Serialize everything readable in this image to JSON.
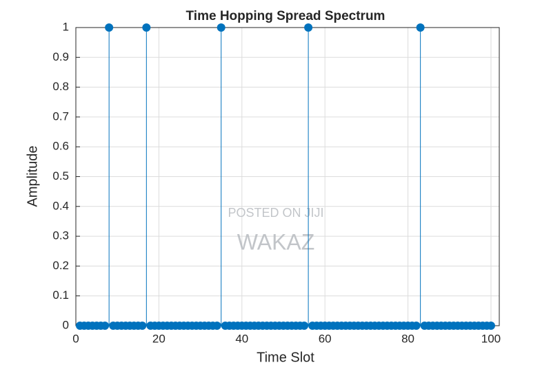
{
  "chart_data": {
    "type": "stem",
    "title": "Time Hopping Spread Spectrum",
    "xlabel": "Time Slot",
    "ylabel": "Amplitude",
    "annotations": [
      "POSTED ON JIJI",
      "WAKAZ"
    ],
    "color": "#0072bd",
    "x": [
      1,
      2,
      3,
      4,
      5,
      6,
      7,
      8,
      9,
      10,
      11,
      12,
      13,
      14,
      15,
      16,
      17,
      18,
      19,
      20,
      21,
      22,
      23,
      24,
      25,
      26,
      27,
      28,
      29,
      30,
      31,
      32,
      33,
      34,
      35,
      36,
      37,
      38,
      39,
      40,
      41,
      42,
      43,
      44,
      45,
      46,
      47,
      48,
      49,
      50,
      51,
      52,
      53,
      54,
      55,
      56,
      57,
      58,
      59,
      60,
      61,
      62,
      63,
      64,
      65,
      66,
      67,
      68,
      69,
      70,
      71,
      72,
      73,
      74,
      75,
      76,
      77,
      78,
      79,
      80,
      81,
      82,
      83,
      84,
      85,
      86,
      87,
      88,
      89,
      90,
      91,
      92,
      93,
      94,
      95,
      96,
      97,
      98,
      99,
      100
    ],
    "values": [
      0,
      0,
      0,
      0,
      0,
      0,
      0,
      1,
      0,
      0,
      0,
      0,
      0,
      0,
      0,
      0,
      1,
      0,
      0,
      0,
      0,
      0,
      0,
      0,
      0,
      0,
      0,
      0,
      0,
      0,
      0,
      0,
      0,
      0,
      1,
      0,
      0,
      0,
      0,
      0,
      0,
      0,
      0,
      0,
      0,
      0,
      0,
      0,
      0,
      0,
      0,
      0,
      0,
      0,
      0,
      1,
      0,
      0,
      0,
      0,
      0,
      0,
      0,
      0,
      0,
      0,
      0,
      0,
      0,
      0,
      0,
      0,
      0,
      0,
      0,
      0,
      0,
      0,
      0,
      0,
      0,
      0,
      1,
      0,
      0,
      0,
      0,
      0,
      0,
      0,
      0,
      0,
      0,
      0,
      0,
      0,
      0,
      0,
      0,
      0
    ],
    "xlim": [
      0,
      102
    ],
    "ylim": [
      0,
      1
    ],
    "xticks": [
      0,
      20,
      40,
      60,
      80,
      100
    ],
    "yticks": [
      0,
      0.1,
      0.2,
      0.3,
      0.4,
      0.5,
      0.6,
      0.7,
      0.8,
      0.9,
      1
    ],
    "grid": true
  }
}
